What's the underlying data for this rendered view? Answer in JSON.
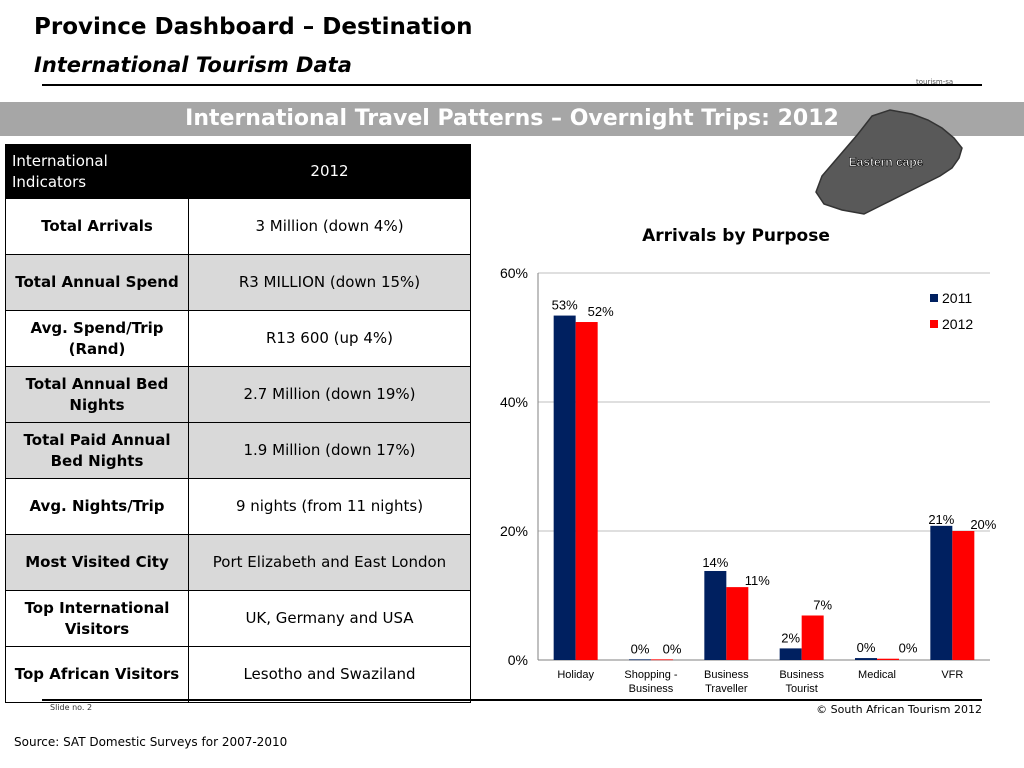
{
  "header": {
    "title": "Province Dashboard – Destination",
    "subtitle": "International Tourism Data",
    "brand_small": "tourism-sa"
  },
  "banner": {
    "text": "International Travel Patterns – Overnight Trips: 2012"
  },
  "map": {
    "label": "Eastern  cape",
    "fill_color": "#595959"
  },
  "table": {
    "header_label": "International Indicators",
    "header_year": "2012",
    "rows": [
      {
        "label": "Total Arrivals",
        "value": "3 Million (down 4%)"
      },
      {
        "label": "Total Annual Spend",
        "value": "R3 MILLION (down 15%)"
      },
      {
        "label": "Avg. Spend/Trip (Rand)",
        "value": "R13 600 (up 4%)"
      },
      {
        "label": "Total Annual Bed Nights",
        "value": "2.7 Million (down 19%)"
      },
      {
        "label": "Total Paid Annual Bed Nights",
        "value": "1.9 Million (down 17%)"
      },
      {
        "label": "Avg. Nights/Trip",
        "value": "9 nights (from 11 nights)"
      },
      {
        "label": "Most Visited City",
        "value": "Port Elizabeth and East London"
      },
      {
        "label": "Top International Visitors",
        "value": "UK, Germany and USA"
      },
      {
        "label": "Top African Visitors",
        "value": "Lesotho and Swaziland"
      }
    ]
  },
  "chart_data": {
    "type": "bar",
    "title": "Arrivals by Purpose",
    "categories": [
      "Holiday",
      "Shopping - Business",
      "Business Traveller",
      "Business Tourist",
      "Medical",
      "VFR"
    ],
    "series": [
      {
        "name": "2011",
        "color": "#002060",
        "values": [
          53.4,
          0.1,
          13.8,
          1.8,
          0.3,
          20.8
        ],
        "labels": [
          "53%",
          "0%",
          "14%",
          "2%",
          "0%",
          "21%"
        ]
      },
      {
        "name": "2012",
        "color": "#ff0000",
        "values": [
          52.4,
          0.1,
          11.3,
          6.9,
          0.2,
          20.0
        ],
        "labels": [
          "52%",
          "0%",
          "11%",
          "7%",
          "0%",
          "20%"
        ]
      }
    ],
    "ylim": [
      0,
      60
    ],
    "yticks": [
      "0%",
      "20%",
      "40%",
      "60%"
    ],
    "grid": true,
    "legend": "top-right",
    "xlabel": "",
    "ylabel": ""
  },
  "footer": {
    "slide_no": "Slide no. 2",
    "copyright": "© South African Tourism 2012",
    "source": "Source: SAT Domestic Surveys for 2007-2010"
  }
}
